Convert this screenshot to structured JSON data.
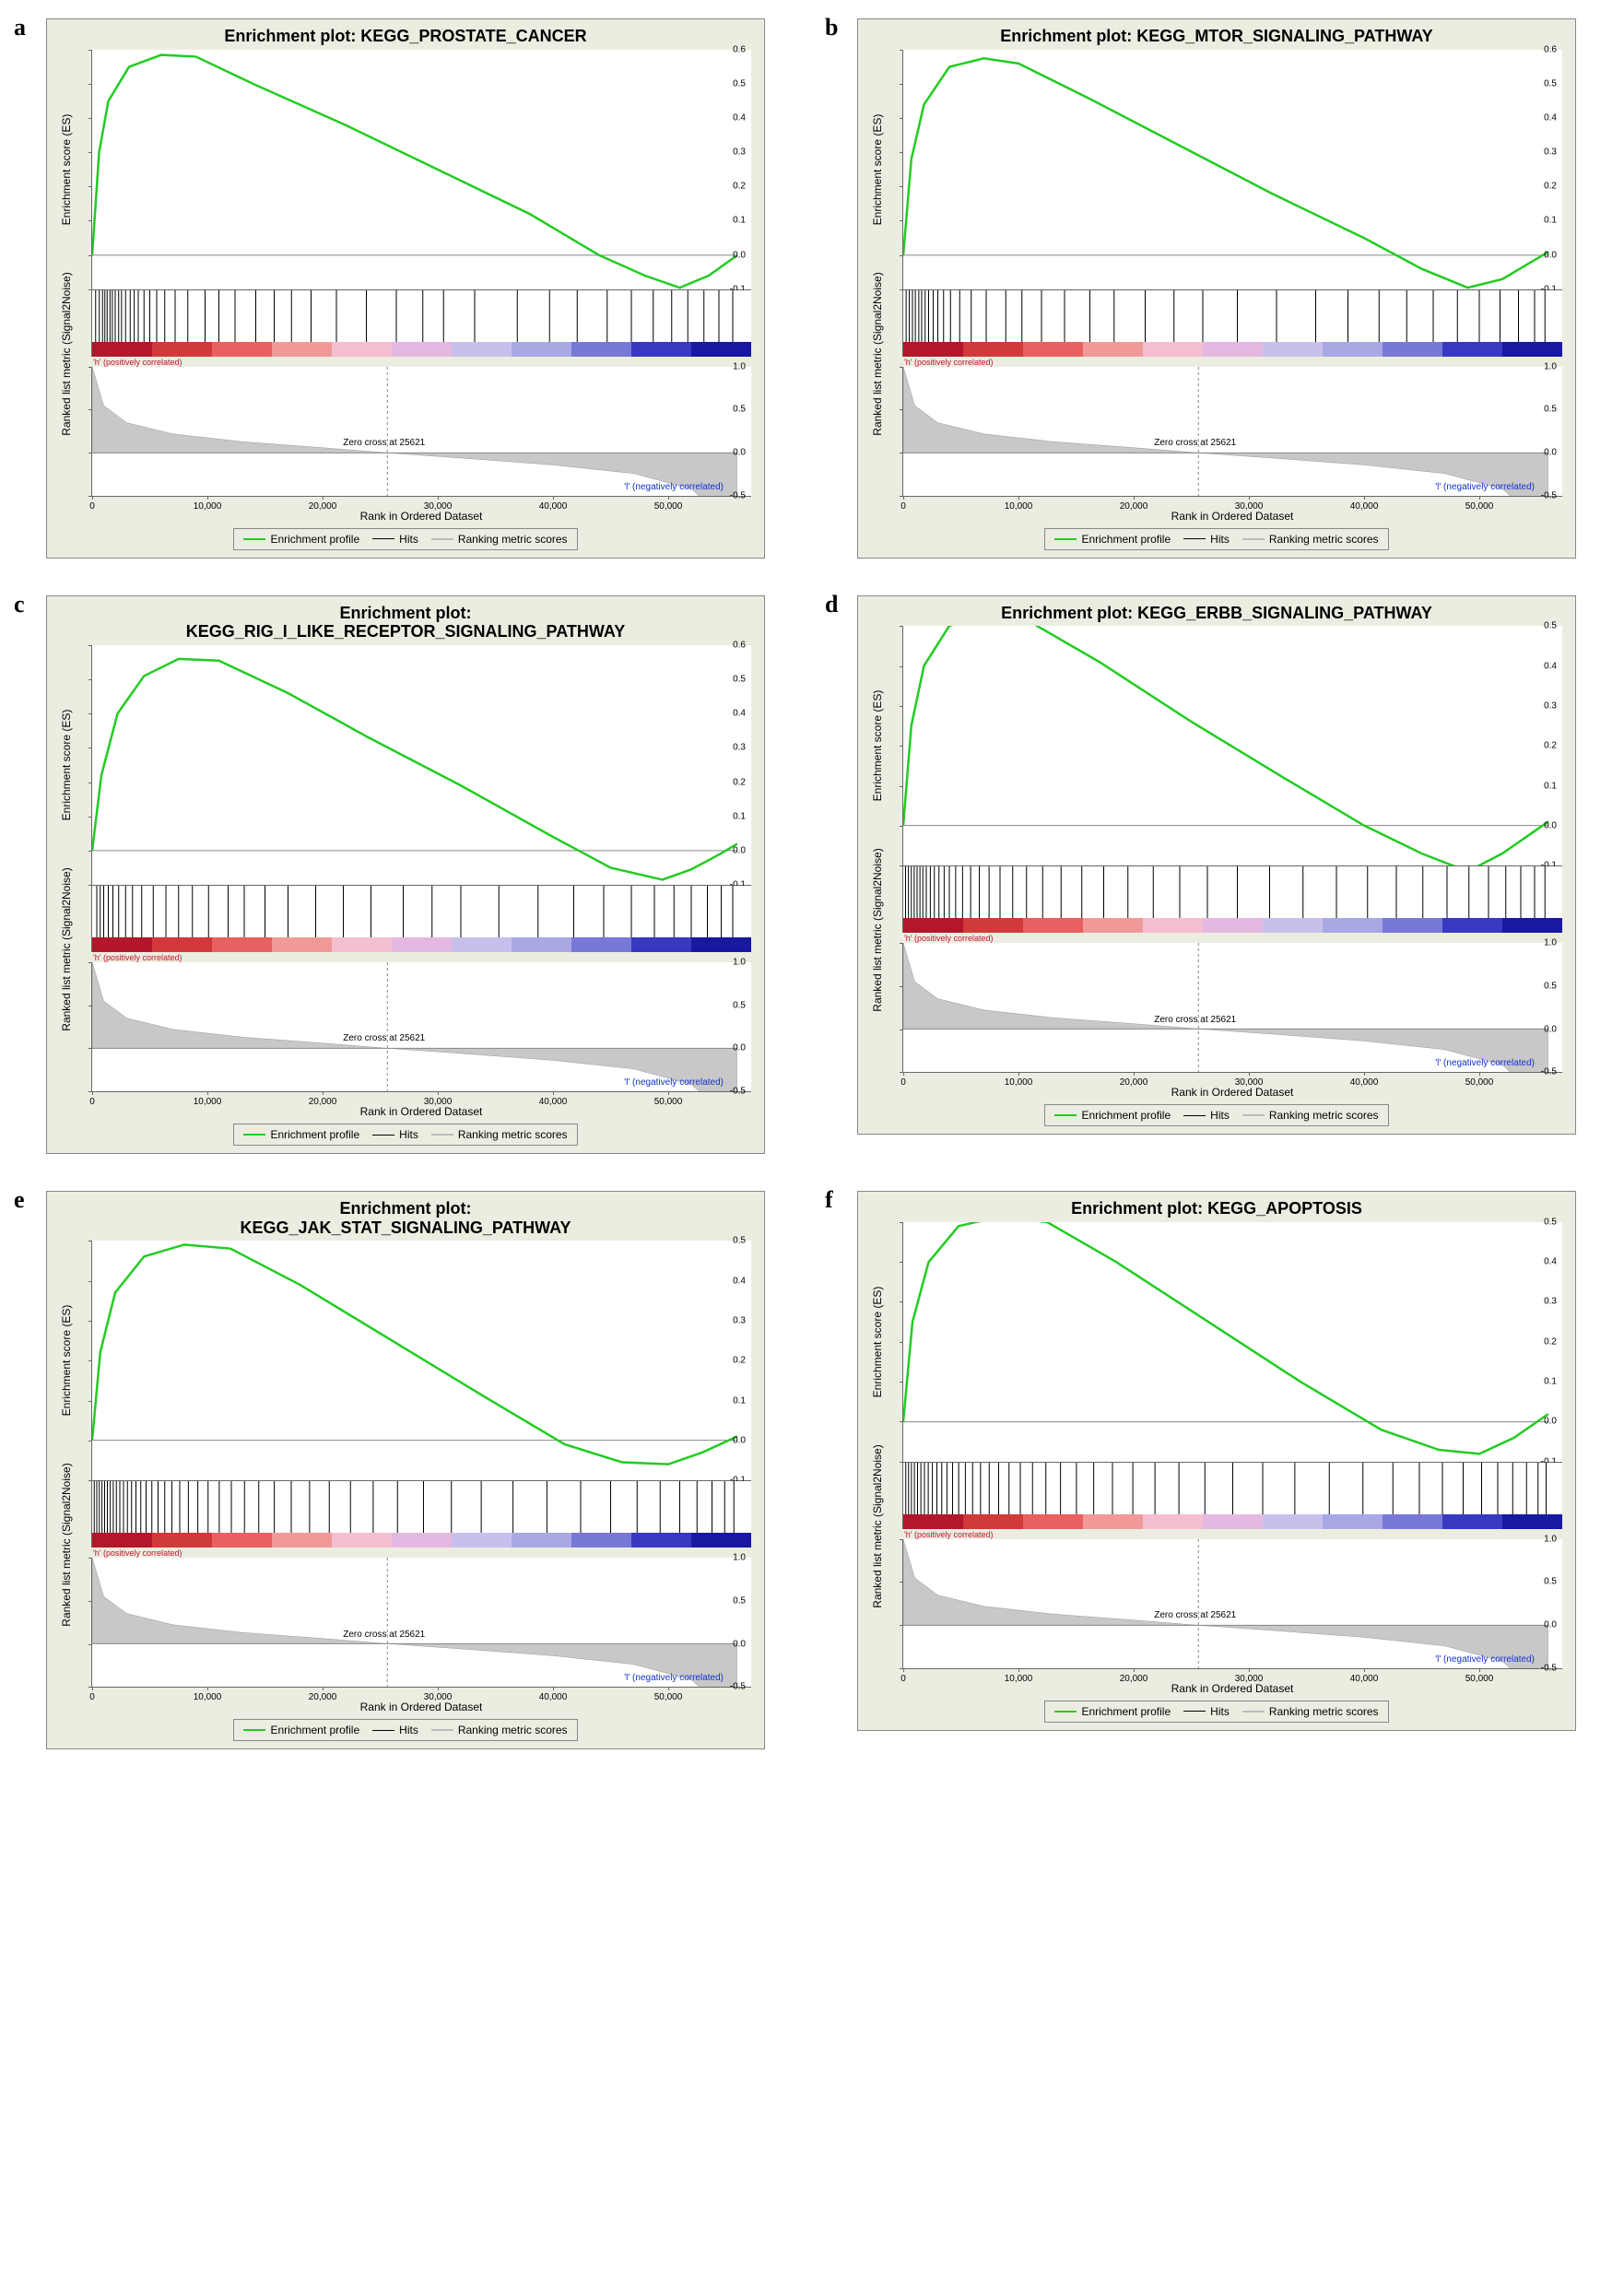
{
  "layout": {
    "panels_per_row": 2,
    "panel_bg": "#ecede1",
    "plot_bg": "#ffffff",
    "border_color": "#888888",
    "axis_color": "#666666",
    "title_fontsize": 18,
    "axis_label_fontsize": 12,
    "tick_fontsize": 10
  },
  "common": {
    "es_ylabel": "Enrichment score (ES)",
    "rank_ylabel": "Ranked list metric (Signal2Noise)",
    "xlabel": "Rank in Ordered Dataset",
    "xlim": [
      0,
      56000
    ],
    "xticks": [
      0,
      10000,
      20000,
      30000,
      40000,
      50000
    ],
    "xtick_labels": [
      "0",
      "10,000",
      "20,000",
      "30,000",
      "40,000",
      "50,000"
    ],
    "zero_cross": 25621,
    "zero_cross_label": "Zero cross at 25621",
    "pos_label": "'h' (positively correlated)",
    "neg_label": "'l' (negatively correlated)",
    "pos_color": "#c8102e",
    "neg_color": "#1030d0",
    "legend": {
      "items": [
        {
          "label": "Enrichment profile",
          "color": "#22cc22",
          "width": 2
        },
        {
          "label": "Hits",
          "color": "#000000",
          "width": 1
        },
        {
          "label": "Ranking metric scores",
          "color": "#bbbbbb",
          "width": 2
        }
      ]
    },
    "heatmap_colors": [
      "#b3172b",
      "#d13a3a",
      "#e86060",
      "#f19999",
      "#f4c0d0",
      "#e4b8e0",
      "#c8c0ec",
      "#a8a8e4",
      "#7878d8",
      "#3838c0",
      "#1818a0"
    ],
    "rank_metric": {
      "ylim": [
        -0.5,
        1.0
      ],
      "yticks": [
        -0.5,
        0.0,
        0.5,
        1.0
      ],
      "fill_color": "#c8c8c8",
      "curve": [
        [
          0,
          1.0
        ],
        [
          1000,
          0.55
        ],
        [
          3000,
          0.35
        ],
        [
          7000,
          0.22
        ],
        [
          13000,
          0.13
        ],
        [
          20000,
          0.06
        ],
        [
          25621,
          0.0
        ],
        [
          32000,
          -0.06
        ],
        [
          40000,
          -0.14
        ],
        [
          47000,
          -0.24
        ],
        [
          52000,
          -0.42
        ],
        [
          56000,
          -0.9
        ]
      ]
    }
  },
  "panels": [
    {
      "id": "a",
      "label": "a",
      "title": "Enrichment plot: KEGG_PROSTATE_CANCER",
      "es_ylim": [
        -0.1,
        0.6
      ],
      "es_yticks": [
        -0.1,
        0.0,
        0.1,
        0.2,
        0.3,
        0.4,
        0.5,
        0.6
      ],
      "es_curve": [
        [
          0,
          0.0
        ],
        [
          600,
          0.3
        ],
        [
          1400,
          0.45
        ],
        [
          3200,
          0.55
        ],
        [
          6000,
          0.585
        ],
        [
          9000,
          0.58
        ],
        [
          14000,
          0.5
        ],
        [
          22000,
          0.38
        ],
        [
          30000,
          0.25
        ],
        [
          38000,
          0.12
        ],
        [
          44000,
          0.0
        ],
        [
          48000,
          -0.06
        ],
        [
          51000,
          -0.095
        ],
        [
          53500,
          -0.06
        ],
        [
          56000,
          0.0
        ]
      ],
      "es_color": "#22cc22",
      "es_width": 2.5,
      "hits": [
        300,
        620,
        900,
        1100,
        1300,
        1550,
        1750,
        2000,
        2300,
        2550,
        2900,
        3300,
        3650,
        4000,
        4500,
        5000,
        5600,
        6300,
        7200,
        8300,
        9800,
        11000,
        12400,
        14200,
        15800,
        17300,
        19000,
        21200,
        23800,
        26400,
        28700,
        30500,
        33200,
        36900,
        39700,
        42100,
        44700,
        46800,
        48700,
        50300,
        51700,
        53100,
        54400,
        55600
      ],
      "hit_color": "#000000"
    },
    {
      "id": "b",
      "label": "b",
      "title": "Enrichment plot: KEGG_MTOR_SIGNALING_PATHWAY",
      "es_ylim": [
        -0.1,
        0.6
      ],
      "es_yticks": [
        -0.1,
        0.0,
        0.1,
        0.2,
        0.3,
        0.4,
        0.5,
        0.6
      ],
      "es_curve": [
        [
          0,
          0.0
        ],
        [
          700,
          0.28
        ],
        [
          1800,
          0.44
        ],
        [
          4000,
          0.55
        ],
        [
          7000,
          0.575
        ],
        [
          10000,
          0.56
        ],
        [
          16000,
          0.46
        ],
        [
          24000,
          0.32
        ],
        [
          32000,
          0.18
        ],
        [
          40000,
          0.05
        ],
        [
          45000,
          -0.04
        ],
        [
          49000,
          -0.095
        ],
        [
          52000,
          -0.07
        ],
        [
          54500,
          -0.02
        ],
        [
          56000,
          0.01
        ]
      ],
      "es_color": "#22cc22",
      "es_width": 2.5,
      "hits": [
        250,
        520,
        800,
        1050,
        1350,
        1600,
        1900,
        2200,
        2600,
        3000,
        3500,
        4100,
        4900,
        5900,
        7200,
        8900,
        10300,
        12000,
        14000,
        16200,
        18300,
        21000,
        23500,
        26000,
        29000,
        32400,
        35800,
        38600,
        41300,
        43700,
        46000,
        48100,
        50000,
        51800,
        53400,
        54800,
        55700
      ],
      "hit_color": "#000000"
    },
    {
      "id": "c",
      "label": "c",
      "title": "Enrichment plot: KEGG_RIG_I_LIKE_RECEPTOR_SIGNALING_PATHWAY",
      "multiline_title": [
        "Enrichment plot:",
        "KEGG_RIG_I_LIKE_RECEPTOR_SIGNALING_PATHWAY"
      ],
      "es_ylim": [
        -0.1,
        0.6
      ],
      "es_yticks": [
        -0.1,
        0.0,
        0.1,
        0.2,
        0.3,
        0.4,
        0.5,
        0.6
      ],
      "es_curve": [
        [
          0,
          0.0
        ],
        [
          800,
          0.22
        ],
        [
          2200,
          0.4
        ],
        [
          4500,
          0.51
        ],
        [
          7500,
          0.56
        ],
        [
          11000,
          0.555
        ],
        [
          17000,
          0.46
        ],
        [
          24000,
          0.33
        ],
        [
          32000,
          0.19
        ],
        [
          40000,
          0.04
        ],
        [
          45000,
          -0.05
        ],
        [
          49500,
          -0.085
        ],
        [
          52000,
          -0.055
        ],
        [
          54500,
          -0.01
        ],
        [
          56000,
          0.02
        ]
      ],
      "es_color": "#22cc22",
      "es_width": 2.5,
      "hits": [
        400,
        700,
        1000,
        1400,
        1800,
        2300,
        2900,
        3500,
        4300,
        5300,
        6400,
        7500,
        8700,
        10100,
        11800,
        13200,
        15000,
        17000,
        19400,
        21800,
        24200,
        27000,
        29500,
        32000,
        35300,
        38700,
        41800,
        44400,
        46800,
        48800,
        50500,
        52000,
        53400,
        54600,
        55600
      ],
      "hit_color": "#000000"
    },
    {
      "id": "d",
      "label": "d",
      "title": "Enrichment plot: KEGG_ERBB_SIGNALING_PATHWAY",
      "es_ylim": [
        -0.1,
        0.5
      ],
      "es_yticks": [
        -0.1,
        0.0,
        0.1,
        0.2,
        0.3,
        0.4,
        0.5
      ],
      "es_curve": [
        [
          0,
          0.0
        ],
        [
          700,
          0.25
        ],
        [
          1800,
          0.4
        ],
        [
          4000,
          0.5
        ],
        [
          7000,
          0.525
        ],
        [
          11000,
          0.51
        ],
        [
          17000,
          0.41
        ],
        [
          25000,
          0.26
        ],
        [
          33000,
          0.12
        ],
        [
          40000,
          0.0
        ],
        [
          45000,
          -0.07
        ],
        [
          49000,
          -0.115
        ],
        [
          52000,
          -0.07
        ],
        [
          54500,
          -0.02
        ],
        [
          56000,
          0.01
        ]
      ],
      "es_color": "#22cc22",
      "es_width": 2.5,
      "hits": [
        200,
        450,
        700,
        950,
        1200,
        1450,
        1700,
        2000,
        2350,
        2700,
        3100,
        3550,
        4000,
        4550,
        5150,
        5850,
        6600,
        7450,
        8400,
        9500,
        10700,
        12100,
        13700,
        15500,
        17400,
        19500,
        21700,
        24000,
        26400,
        29000,
        31800,
        34700,
        37600,
        40300,
        42800,
        45100,
        47200,
        49100,
        50800,
        52300,
        53600,
        54800,
        55700
      ],
      "hit_color": "#000000"
    },
    {
      "id": "e",
      "label": "e",
      "title": "Enrichment plot: KEGG_JAK_STAT_SIGNALING_PATHWAY",
      "multiline_title": [
        "Enrichment plot:",
        "KEGG_JAK_STAT_SIGNALING_PATHWAY"
      ],
      "es_ylim": [
        -0.1,
        0.5
      ],
      "es_yticks": [
        -0.1,
        0.0,
        0.1,
        0.2,
        0.3,
        0.4,
        0.5
      ],
      "es_curve": [
        [
          0,
          0.0
        ],
        [
          700,
          0.22
        ],
        [
          2000,
          0.37
        ],
        [
          4500,
          0.46
        ],
        [
          8000,
          0.49
        ],
        [
          12000,
          0.48
        ],
        [
          18000,
          0.39
        ],
        [
          26000,
          0.25
        ],
        [
          34000,
          0.11
        ],
        [
          41000,
          -0.01
        ],
        [
          46000,
          -0.055
        ],
        [
          50000,
          -0.06
        ],
        [
          53000,
          -0.03
        ],
        [
          56000,
          0.01
        ]
      ],
      "es_color": "#22cc22",
      "es_width": 2.5,
      "hits": [
        180,
        400,
        620,
        850,
        1080,
        1320,
        1570,
        1830,
        2100,
        2400,
        2720,
        3060,
        3420,
        3800,
        4220,
        4680,
        5180,
        5720,
        6300,
        6920,
        7600,
        8350,
        9170,
        10060,
        11030,
        12080,
        13220,
        14460,
        15810,
        17280,
        18870,
        20580,
        22420,
        24390,
        26500,
        28760,
        31180,
        33770,
        36530,
        39470,
        42400,
        45000,
        47300,
        49300,
        51000,
        52500,
        53800,
        54900,
        55700
      ],
      "hit_color": "#000000"
    },
    {
      "id": "f",
      "label": "f",
      "title": "Enrichment plot: KEGG_APOPTOSIS",
      "es_ylim": [
        -0.1,
        0.5
      ],
      "es_yticks": [
        -0.1,
        0.0,
        0.1,
        0.2,
        0.3,
        0.4,
        0.5
      ],
      "es_curve": [
        [
          0,
          0.0
        ],
        [
          800,
          0.25
        ],
        [
          2200,
          0.4
        ],
        [
          4800,
          0.49
        ],
        [
          8500,
          0.515
        ],
        [
          12500,
          0.5
        ],
        [
          18500,
          0.4
        ],
        [
          26500,
          0.25
        ],
        [
          34500,
          0.1
        ],
        [
          41500,
          -0.02
        ],
        [
          46500,
          -0.07
        ],
        [
          50000,
          -0.08
        ],
        [
          53000,
          -0.04
        ],
        [
          56000,
          0.02
        ]
      ],
      "es_color": "#22cc22",
      "es_width": 2.5,
      "hits": [
        220,
        460,
        710,
        970,
        1240,
        1530,
        1840,
        2170,
        2530,
        2920,
        3340,
        3790,
        4280,
        4810,
        5390,
        6020,
        6710,
        7460,
        8280,
        9180,
        10160,
        11220,
        12380,
        13650,
        15030,
        16530,
        18160,
        19930,
        21850,
        23930,
        26180,
        28600,
        31200,
        33990,
        36980,
        39900,
        42500,
        44800,
        46800,
        48600,
        50200,
        51600,
        52900,
        54100,
        55100,
        55800
      ],
      "hit_color": "#000000"
    }
  ]
}
